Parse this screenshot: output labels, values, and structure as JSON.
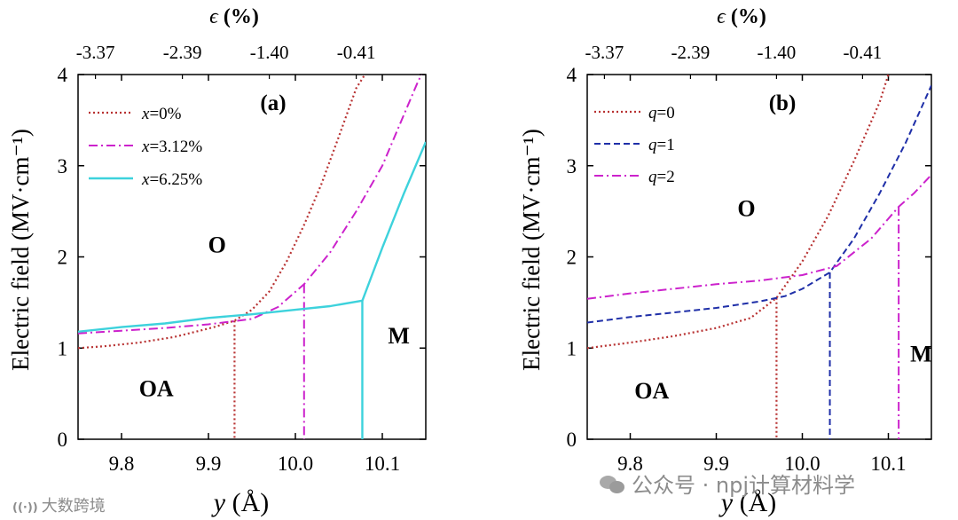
{
  "chart_data": [
    {
      "type": "line",
      "panel_label": "(a)",
      "xlabel_var": "y",
      "xlabel_unit": " (Å)",
      "ylabel": "Electric field (MV·cm⁻¹)",
      "top_label_var": "ϵ",
      "top_label_unit": " (%)",
      "xlim": [
        9.75,
        10.15
      ],
      "ylim": [
        0,
        4
      ],
      "x_ticks": [
        {
          "value": 9.8,
          "label": "9.8"
        },
        {
          "value": 9.9,
          "label": "9.9"
        },
        {
          "value": 10.0,
          "label": "10.0"
        },
        {
          "value": 10.1,
          "label": "10.1"
        }
      ],
      "y_ticks": [
        {
          "value": 0,
          "label": "0"
        },
        {
          "value": 1,
          "label": "1"
        },
        {
          "value": 2,
          "label": "2"
        },
        {
          "value": 3,
          "label": "3"
        },
        {
          "value": 4,
          "label": "4"
        }
      ],
      "top_ticks": [
        {
          "value": 9.77,
          "label": "-3.37"
        },
        {
          "value": 9.87,
          "label": "-2.39"
        },
        {
          "value": 9.97,
          "label": "-1.40"
        },
        {
          "value": 10.07,
          "label": "-0.41"
        }
      ],
      "region_labels": [
        {
          "text": "O",
          "x": 9.91,
          "y": 2.05
        },
        {
          "text": "OA",
          "x": 9.84,
          "y": 0.47
        },
        {
          "text": "M",
          "x": 10.119,
          "y": 1.05
        }
      ],
      "legend": "top-left",
      "series": [
        {
          "name": "x=0%",
          "legend_var": "x",
          "legend_value": "=0%",
          "color": "#b83232",
          "dash": "dot",
          "width": 2.2,
          "points": [
            [
              9.75,
              1.0
            ],
            [
              9.78,
              1.02
            ],
            [
              9.82,
              1.06
            ],
            [
              9.86,
              1.12
            ],
            [
              9.89,
              1.19
            ],
            [
              9.91,
              1.24
            ],
            [
              9.93,
              1.3
            ],
            [
              9.95,
              1.42
            ],
            [
              9.97,
              1.62
            ],
            [
              9.99,
              1.95
            ],
            [
              10.01,
              2.35
            ],
            [
              10.03,
              2.8
            ],
            [
              10.05,
              3.32
            ],
            [
              10.07,
              3.85
            ],
            [
              10.08,
              4.0
            ]
          ],
          "boundary": {
            "x": 9.93,
            "y_top": 1.3
          }
        },
        {
          "name": "x=3.12%",
          "legend_var": "x",
          "legend_value": "=3.12%",
          "color": "#cc22cc",
          "dash": "dashdot",
          "width": 2.0,
          "points": [
            [
              9.75,
              1.16
            ],
            [
              9.8,
              1.19
            ],
            [
              9.85,
              1.22
            ],
            [
              9.9,
              1.26
            ],
            [
              9.95,
              1.32
            ],
            [
              9.98,
              1.45
            ],
            [
              10.01,
              1.7
            ],
            [
              10.04,
              2.05
            ],
            [
              10.07,
              2.5
            ],
            [
              10.1,
              3.0
            ],
            [
              10.12,
              3.45
            ],
            [
              10.14,
              3.9
            ],
            [
              10.145,
              4.0
            ]
          ],
          "boundary": {
            "x": 10.01,
            "y_top": 1.7
          }
        },
        {
          "name": "x=6.25%",
          "legend_var": "x",
          "legend_value": "=6.25%",
          "color": "#3dd2dc",
          "dash": "solid",
          "width": 2.4,
          "points": [
            [
              9.75,
              1.18
            ],
            [
              9.8,
              1.23
            ],
            [
              9.85,
              1.27
            ],
            [
              9.9,
              1.33
            ],
            [
              9.95,
              1.37
            ],
            [
              10.0,
              1.42
            ],
            [
              10.04,
              1.46
            ],
            [
              10.077,
              1.52
            ],
            [
              10.1,
              2.1
            ],
            [
              10.125,
              2.7
            ],
            [
              10.15,
              3.26
            ]
          ],
          "boundary": {
            "x": 10.077,
            "y_top": 1.52
          }
        }
      ]
    },
    {
      "type": "line",
      "panel_label": "(b)",
      "xlabel_var": "y",
      "xlabel_unit": " (Å)",
      "ylabel": "Electric field (MV·cm⁻¹)",
      "top_label_var": "ϵ",
      "top_label_unit": " (%)",
      "xlim": [
        9.75,
        10.15
      ],
      "ylim": [
        0,
        4
      ],
      "x_ticks": [
        {
          "value": 9.8,
          "label": "9.8"
        },
        {
          "value": 9.9,
          "label": "9.9"
        },
        {
          "value": 10.0,
          "label": "10.0"
        },
        {
          "value": 10.1,
          "label": "10.1"
        }
      ],
      "y_ticks": [
        {
          "value": 0,
          "label": "0"
        },
        {
          "value": 1,
          "label": "1"
        },
        {
          "value": 2,
          "label": "2"
        },
        {
          "value": 3,
          "label": "3"
        },
        {
          "value": 4,
          "label": "4"
        }
      ],
      "top_ticks": [
        {
          "value": 9.77,
          "label": "-3.37"
        },
        {
          "value": 9.87,
          "label": "-2.39"
        },
        {
          "value": 9.97,
          "label": "-1.40"
        },
        {
          "value": 10.07,
          "label": "-0.41"
        }
      ],
      "region_labels": [
        {
          "text": "O",
          "x": 9.935,
          "y": 2.45
        },
        {
          "text": "OA",
          "x": 9.825,
          "y": 0.45
        },
        {
          "text": "M",
          "x": 10.138,
          "y": 0.85
        }
      ],
      "legend": "top-left",
      "series": [
        {
          "name": "q=0",
          "legend_var": "q",
          "legend_value": "=0",
          "color": "#b83232",
          "dash": "dot",
          "width": 2.2,
          "points": [
            [
              9.75,
              1.0
            ],
            [
              9.8,
              1.06
            ],
            [
              9.85,
              1.13
            ],
            [
              9.9,
              1.22
            ],
            [
              9.94,
              1.33
            ],
            [
              9.97,
              1.55
            ],
            [
              10.0,
              1.95
            ],
            [
              10.03,
              2.45
            ],
            [
              10.06,
              3.05
            ],
            [
              10.09,
              3.7
            ],
            [
              10.1,
              4.0
            ]
          ],
          "boundary": {
            "x": 9.97,
            "y_top": 1.55
          }
        },
        {
          "name": "q=1",
          "legend_var": "q",
          "legend_value": "=1",
          "color": "#1f2fa8",
          "dash": "dash",
          "width": 2.0,
          "points": [
            [
              9.75,
              1.28
            ],
            [
              9.8,
              1.34
            ],
            [
              9.85,
              1.39
            ],
            [
              9.9,
              1.44
            ],
            [
              9.95,
              1.51
            ],
            [
              9.98,
              1.57
            ],
            [
              10.0,
              1.65
            ],
            [
              10.032,
              1.83
            ],
            [
              10.06,
              2.2
            ],
            [
              10.09,
              2.7
            ],
            [
              10.12,
              3.25
            ],
            [
              10.15,
              3.88
            ]
          ],
          "boundary": {
            "x": 10.032,
            "y_top": 1.83
          }
        },
        {
          "name": "q=2",
          "legend_var": "q",
          "legend_value": "=2",
          "color": "#cc22cc",
          "dash": "dashdot",
          "width": 2.0,
          "points": [
            [
              9.75,
              1.54
            ],
            [
              9.8,
              1.6
            ],
            [
              9.85,
              1.65
            ],
            [
              9.9,
              1.7
            ],
            [
              9.95,
              1.74
            ],
            [
              10.0,
              1.8
            ],
            [
              10.04,
              1.9
            ],
            [
              10.08,
              2.2
            ],
            [
              10.112,
              2.55
            ],
            [
              10.13,
              2.7
            ],
            [
              10.15,
              2.9
            ]
          ],
          "boundary": {
            "x": 10.112,
            "y_top": 2.55
          }
        }
      ]
    }
  ],
  "watermarks": {
    "left": "大数跨境",
    "right": "公众号 · npj计算材料学"
  }
}
